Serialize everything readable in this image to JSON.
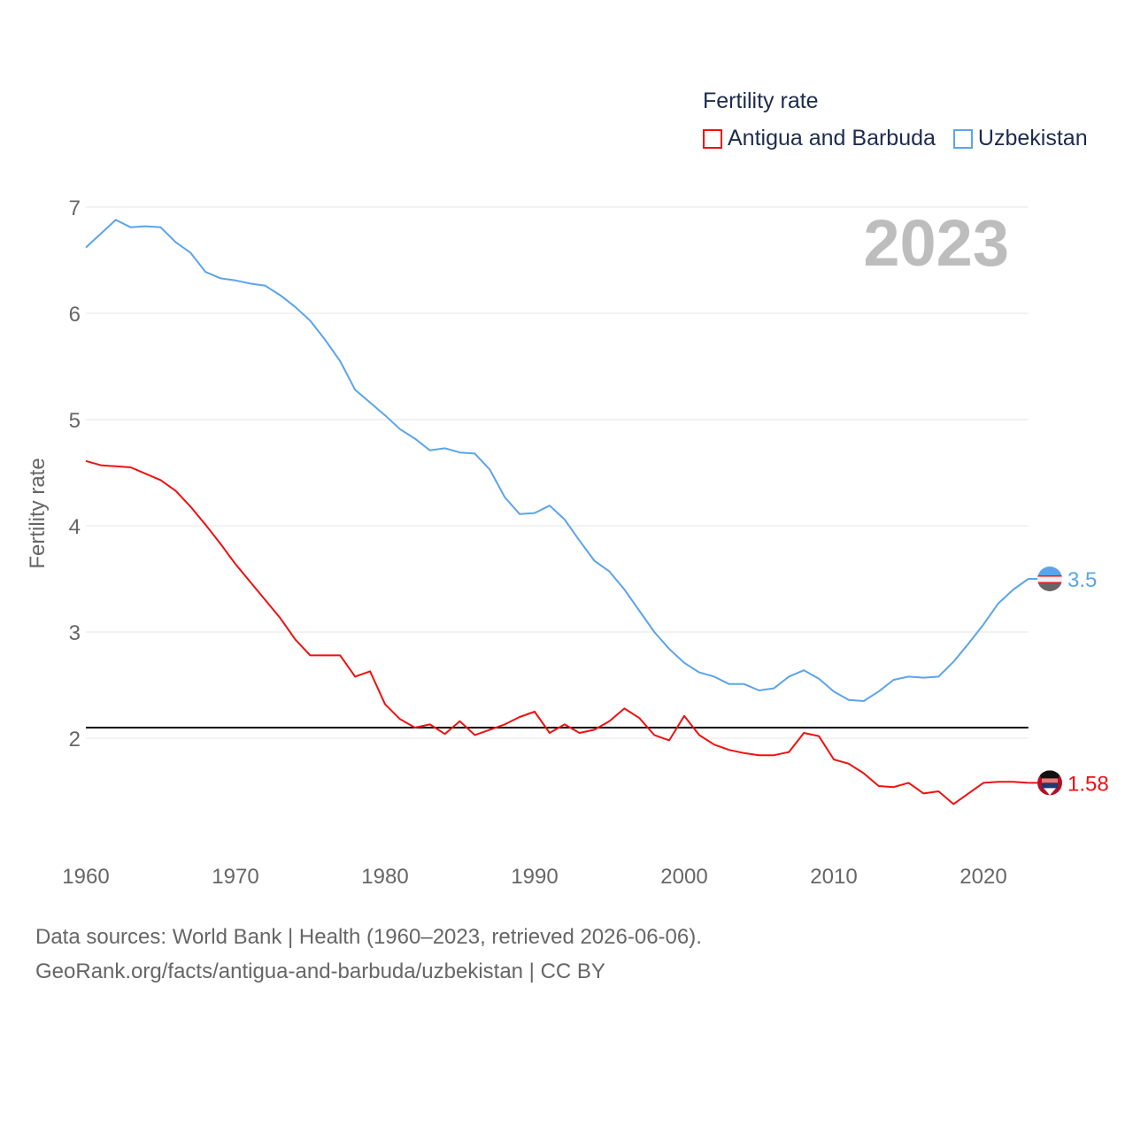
{
  "chart_data": {
    "type": "line",
    "title": "Fertility rate",
    "ylabel": "Fertility rate",
    "xlabel": "",
    "year_watermark": "2023",
    "xlim": [
      1960,
      2023
    ],
    "ylim": [
      1.0,
      7.0
    ],
    "xticks": [
      1960,
      1970,
      1980,
      1990,
      2000,
      2010,
      2020
    ],
    "yticks": [
      2,
      3,
      4,
      5,
      6,
      7
    ],
    "grid": true,
    "legend_placement": "top-right",
    "reference_line": {
      "y": 2.1,
      "color": "#000000"
    },
    "x": [
      1960,
      1961,
      1962,
      1963,
      1964,
      1965,
      1966,
      1967,
      1968,
      1969,
      1970,
      1971,
      1972,
      1973,
      1974,
      1975,
      1976,
      1977,
      1978,
      1979,
      1980,
      1981,
      1982,
      1983,
      1984,
      1985,
      1986,
      1987,
      1988,
      1989,
      1990,
      1991,
      1992,
      1993,
      1994,
      1995,
      1996,
      1997,
      1998,
      1999,
      2000,
      2001,
      2002,
      2003,
      2004,
      2005,
      2006,
      2007,
      2008,
      2009,
      2010,
      2011,
      2012,
      2013,
      2014,
      2015,
      2016,
      2017,
      2018,
      2019,
      2020,
      2021,
      2022,
      2023
    ],
    "series": [
      {
        "name": "Antigua and Barbuda",
        "color": "#f01010",
        "end_label": "1.58",
        "values": [
          4.61,
          4.57,
          4.56,
          4.55,
          4.49,
          4.43,
          4.33,
          4.18,
          4.01,
          3.83,
          3.64,
          3.47,
          3.3,
          3.13,
          2.93,
          2.78,
          2.78,
          2.78,
          2.58,
          2.63,
          2.32,
          2.18,
          2.1,
          2.13,
          2.04,
          2.16,
          2.03,
          2.08,
          2.13,
          2.2,
          2.25,
          2.05,
          2.13,
          2.05,
          2.08,
          2.16,
          2.28,
          2.19,
          2.03,
          1.98,
          2.21,
          2.03,
          1.94,
          1.89,
          1.86,
          1.84,
          1.84,
          1.87,
          2.05,
          2.02,
          1.8,
          1.76,
          1.67,
          1.55,
          1.54,
          1.58,
          1.48,
          1.5,
          1.38,
          1.48,
          1.58,
          1.59,
          1.59,
          1.58
        ]
      },
      {
        "name": "Uzbekistan",
        "color": "#5ba4ea",
        "end_label": "3.5",
        "values": [
          6.62,
          6.75,
          6.88,
          6.81,
          6.82,
          6.81,
          6.67,
          6.57,
          6.39,
          6.33,
          6.31,
          6.28,
          6.26,
          6.17,
          6.06,
          5.93,
          5.75,
          5.55,
          5.28,
          5.16,
          5.04,
          4.91,
          4.82,
          4.71,
          4.73,
          4.69,
          4.68,
          4.53,
          4.27,
          4.11,
          4.12,
          4.19,
          4.06,
          3.86,
          3.67,
          3.57,
          3.4,
          3.2,
          3.0,
          2.84,
          2.71,
          2.62,
          2.58,
          2.51,
          2.51,
          2.45,
          2.47,
          2.58,
          2.64,
          2.56,
          2.44,
          2.36,
          2.35,
          2.44,
          2.55,
          2.58,
          2.57,
          2.58,
          2.72,
          2.89,
          3.07,
          3.27,
          3.4,
          3.5
        ]
      }
    ]
  },
  "source": {
    "line1": "Data sources: World Bank | Health (1960–2023, retrieved 2026-06-06).",
    "line2": "GeoRank.org/facts/antigua-and-barbuda/uzbekistan | CC BY"
  }
}
